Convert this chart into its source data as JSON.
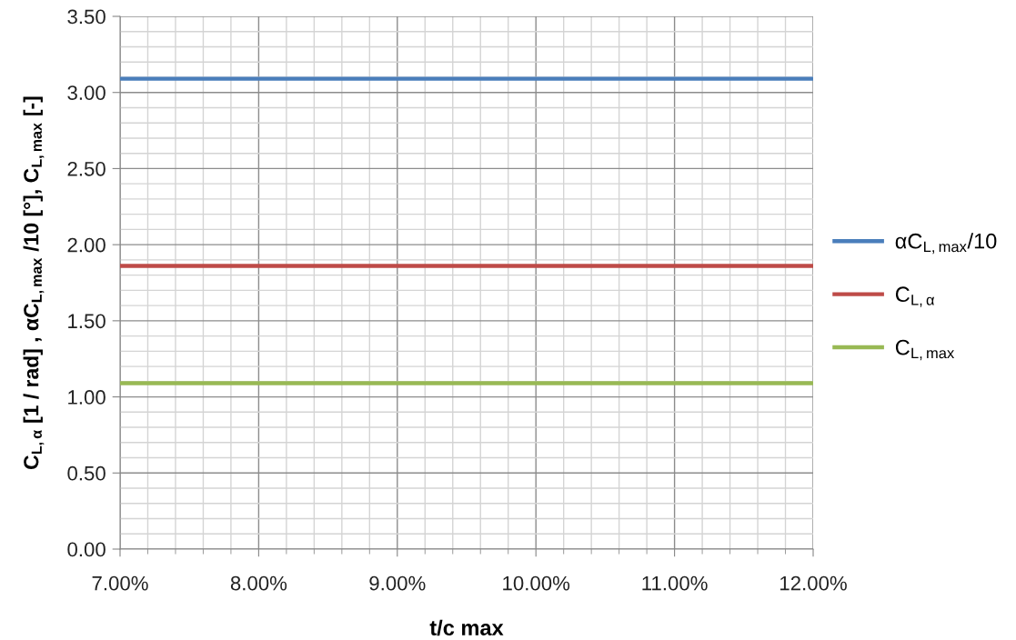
{
  "chart_data": {
    "type": "line",
    "xlabel": "t/c max",
    "ylabel": "C$_{L,α}$ [1 / rad] , αC$_{L,max}$ /10 [°], C$_{L,max}$ [-]",
    "x": [
      7,
      12
    ],
    "series": [
      {
        "name": "αC$_{L,max}$/10",
        "color": "#4a7ebb",
        "values": [
          3.09,
          3.09
        ]
      },
      {
        "name": "C$_{L,α}$",
        "color": "#be4b48",
        "values": [
          1.86,
          1.86
        ]
      },
      {
        "name": "C$_{L,max}$",
        "color": "#98b954",
        "values": [
          1.09,
          1.09
        ]
      }
    ],
    "xlim": [
      7,
      12
    ],
    "xticks": [
      {
        "value": 7,
        "label": "7.00%"
      },
      {
        "value": 7.2,
        "label": null
      },
      {
        "value": 7.4,
        "label": null
      },
      {
        "value": 7.6,
        "label": null
      },
      {
        "value": 7.8,
        "label": null
      },
      {
        "value": 8,
        "label": "8.00%"
      },
      {
        "value": 8.2,
        "label": null
      },
      {
        "value": 8.4,
        "label": null
      },
      {
        "value": 8.6,
        "label": null
      },
      {
        "value": 8.8,
        "label": null
      },
      {
        "value": 9,
        "label": "9.00%"
      },
      {
        "value": 9.2,
        "label": null
      },
      {
        "value": 9.4,
        "label": null
      },
      {
        "value": 9.6,
        "label": null
      },
      {
        "value": 9.8,
        "label": null
      },
      {
        "value": 10,
        "label": "10.00%"
      },
      {
        "value": 10.2,
        "label": null
      },
      {
        "value": 10.4,
        "label": null
      },
      {
        "value": 10.6,
        "label": null
      },
      {
        "value": 10.8,
        "label": null
      },
      {
        "value": 11,
        "label": "11.00%"
      },
      {
        "value": 11.2,
        "label": null
      },
      {
        "value": 11.4,
        "label": null
      },
      {
        "value": 11.6,
        "label": null
      },
      {
        "value": 11.8,
        "label": null
      },
      {
        "value": 12,
        "label": "12.00%"
      }
    ],
    "ylim": [
      0,
      3.5
    ],
    "yticks": [
      {
        "value": 0,
        "label": "0.00"
      },
      {
        "value": 0.1,
        "label": null
      },
      {
        "value": 0.2,
        "label": null
      },
      {
        "value": 0.3,
        "label": null
      },
      {
        "value": 0.4,
        "label": null
      },
      {
        "value": 0.5,
        "label": "0.50"
      },
      {
        "value": 0.6,
        "label": null
      },
      {
        "value": 0.7,
        "label": null
      },
      {
        "value": 0.8,
        "label": null
      },
      {
        "value": 0.9,
        "label": null
      },
      {
        "value": 1,
        "label": "1.00"
      },
      {
        "value": 1.1,
        "label": null
      },
      {
        "value": 1.2,
        "label": null
      },
      {
        "value": 1.3,
        "label": null
      },
      {
        "value": 1.4,
        "label": null
      },
      {
        "value": 1.5,
        "label": "1.50"
      },
      {
        "value": 1.6,
        "label": null
      },
      {
        "value": 1.7,
        "label": null
      },
      {
        "value": 1.8,
        "label": null
      },
      {
        "value": 1.9,
        "label": null
      },
      {
        "value": 2,
        "label": "2.00"
      },
      {
        "value": 2.1,
        "label": null
      },
      {
        "value": 2.2,
        "label": null
      },
      {
        "value": 2.3,
        "label": null
      },
      {
        "value": 2.4,
        "label": null
      },
      {
        "value": 2.5,
        "label": "2.50"
      },
      {
        "value": 2.6,
        "label": null
      },
      {
        "value": 2.7,
        "label": null
      },
      {
        "value": 2.8,
        "label": null
      },
      {
        "value": 2.9,
        "label": null
      },
      {
        "value": 3,
        "label": "3.00"
      },
      {
        "value": 3.1,
        "label": null
      },
      {
        "value": 3.2,
        "label": null
      },
      {
        "value": 3.3,
        "label": null
      },
      {
        "value": 3.4,
        "label": null
      },
      {
        "value": 3.5,
        "label": "3.50"
      }
    ],
    "grid": true,
    "legend": "right",
    "line_style": "solid"
  }
}
